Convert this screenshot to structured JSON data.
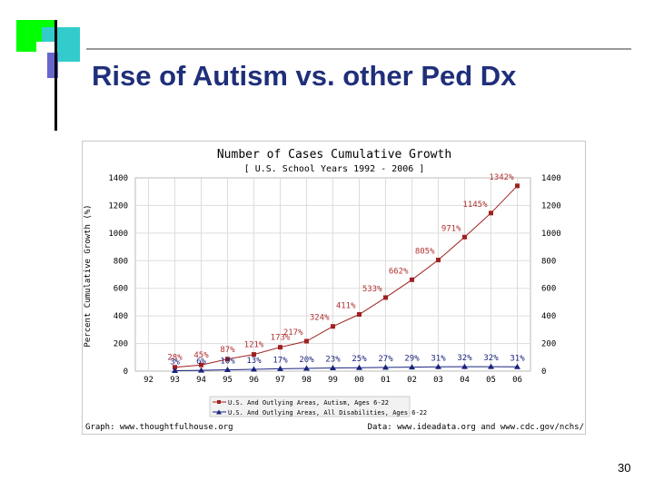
{
  "slide": {
    "title": "Rise of Autism vs. other Ped Dx",
    "page_number": "30"
  },
  "colors": {
    "title": "#1f2f7a",
    "autism_series": "#a02020",
    "all_disabilities_series": "#1a237e",
    "grid": "#dddddd"
  },
  "chart_data": {
    "type": "line",
    "title": "Number of Cases Cumulative Growth",
    "subtitle": "[ U.S. School Years 1992 - 2006 ]",
    "ylabel": "Percent Cumulative Growth (%)",
    "xlabel": "",
    "categories": [
      "92",
      "93",
      "94",
      "95",
      "96",
      "97",
      "98",
      "99",
      "00",
      "01",
      "02",
      "03",
      "04",
      "05",
      "06"
    ],
    "ylim": [
      0,
      1400
    ],
    "yticks": [
      "0",
      "200",
      "400",
      "600",
      "800",
      "1000",
      "1200",
      "1400"
    ],
    "series": [
      {
        "name": "U.S. And Outlying Areas, Autism, Ages 6-22",
        "marker": "square",
        "values": [
          null,
          28,
          45,
          87,
          121,
          173,
          217,
          324,
          411,
          533,
          662,
          805,
          971,
          1145,
          1342
        ],
        "labels": [
          "",
          "28%",
          "45%",
          "87%",
          "121%",
          "173%",
          "217%",
          "324%",
          "411%",
          "533%",
          "662%",
          "805%",
          "971%",
          "1145%",
          "1342%"
        ]
      },
      {
        "name": "U.S. And Outlying Areas, All Disabilities, Ages 6-22",
        "marker": "triangle",
        "values": [
          null,
          3,
          6,
          10,
          13,
          17,
          20,
          23,
          25,
          27,
          29,
          31,
          32,
          32,
          31
        ],
        "labels": [
          "",
          "3%",
          "6%",
          "10%",
          "13%",
          "17%",
          "20%",
          "23%",
          "25%",
          "27%",
          "29%",
          "31%",
          "32%",
          "32%",
          "31%"
        ]
      }
    ],
    "grid": true,
    "legend_position": "bottom",
    "footer_left": "Graph: www.thoughtfulhouse.org",
    "footer_right": "Data: www.ideadata.org and www.cdc.gov/nchs/"
  }
}
